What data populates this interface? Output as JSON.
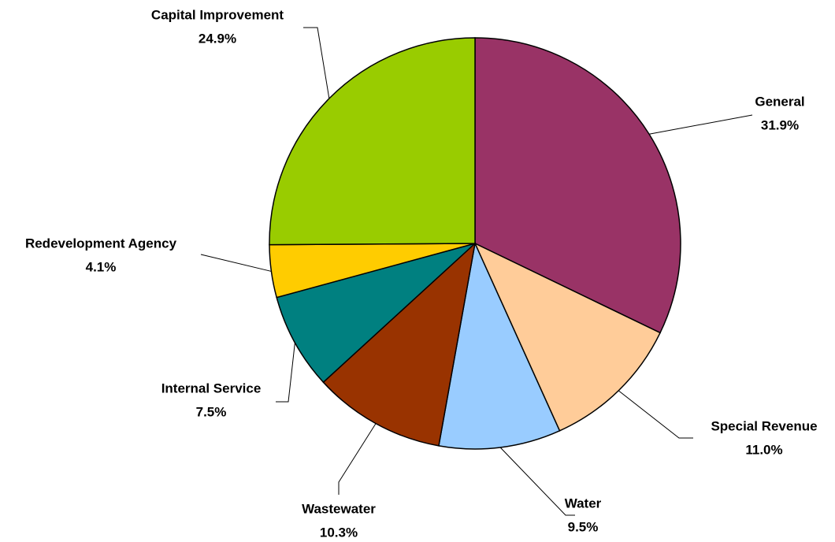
{
  "chart_data": {
    "type": "pie",
    "categories": [
      "General",
      "Special Revenue",
      "Water",
      "Wastewater",
      "Internal Service",
      "Redevelopment Agency",
      "Capital Improvement"
    ],
    "values": [
      31.9,
      11.0,
      9.5,
      10.3,
      7.5,
      4.1,
      24.9
    ],
    "value_labels": [
      "31.9%",
      "11.0%",
      "9.5%",
      "10.3%",
      "7.5%",
      "4.1%",
      "24.9%"
    ],
    "colors": [
      "#993366",
      "#FFCC99",
      "#99CCFF",
      "#993300",
      "#008080",
      "#FFCC00",
      "#99CC00"
    ]
  }
}
